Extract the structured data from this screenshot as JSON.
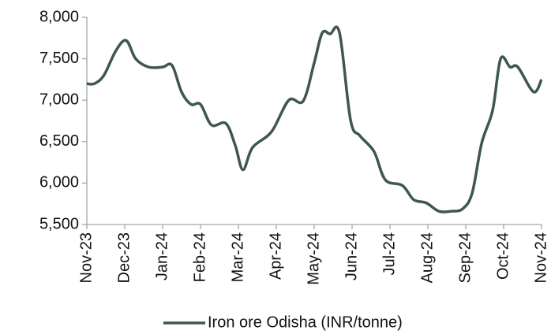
{
  "chart_data": {
    "type": "line",
    "x": [
      0,
      0.2,
      0.45,
      0.77,
      1.04,
      1.29,
      1.63,
      2.0,
      2.25,
      2.5,
      2.75,
      3.0,
      3.29,
      3.67,
      3.92,
      4.12,
      4.375,
      4.875,
      5.33,
      5.71,
      6.0,
      6.21,
      6.42,
      6.67,
      6.96,
      7.21,
      7.58,
      7.875,
      8.33,
      8.625,
      8.96,
      9.29,
      9.625,
      9.92,
      10.17,
      10.42,
      10.71,
      10.92,
      11.17,
      11.375,
      11.79,
      12
    ],
    "series": [
      {
        "name": "Iron ore Odisha (INR/tonne)",
        "color": "#3e5849",
        "values": [
          7200,
          7200,
          7300,
          7600,
          7720,
          7500,
          7400,
          7400,
          7420,
          7100,
          6950,
          6950,
          6700,
          6720,
          6450,
          6160,
          6430,
          6620,
          7000,
          6990,
          7450,
          7810,
          7800,
          7810,
          6760,
          6570,
          6380,
          6040,
          5970,
          5800,
          5760,
          5660,
          5660,
          5690,
          5880,
          6480,
          6880,
          7500,
          7400,
          7400,
          7100,
          7250
        ]
      }
    ],
    "xlim": [
      0,
      12
    ],
    "xticks": [
      {
        "value": 0,
        "label": "Nov-23"
      },
      {
        "value": 1,
        "label": "Dec-23"
      },
      {
        "value": 2,
        "label": "Jan-24"
      },
      {
        "value": 3,
        "label": "Feb-24"
      },
      {
        "value": 4,
        "label": "Mar-24"
      },
      {
        "value": 5,
        "label": "Apr-24"
      },
      {
        "value": 6,
        "label": "May-24"
      },
      {
        "value": 7,
        "label": "Jun-24"
      },
      {
        "value": 8,
        "label": "Jul-24"
      },
      {
        "value": 9,
        "label": "Aug-24"
      },
      {
        "value": 10,
        "label": "Sep-24"
      },
      {
        "value": 11,
        "label": "Oct-24"
      },
      {
        "value": 12,
        "label": "Nov-24"
      }
    ],
    "ylim": [
      5500,
      8000
    ],
    "yticks": [
      {
        "value": 5500,
        "label": "5,500"
      },
      {
        "value": 6000,
        "label": "6,000"
      },
      {
        "value": 6500,
        "label": "6,500"
      },
      {
        "value": 7000,
        "label": "7,000"
      },
      {
        "value": 7500,
        "label": "7,500"
      },
      {
        "value": 8000,
        "label": "8,000"
      }
    ],
    "legend": "bottom"
  }
}
